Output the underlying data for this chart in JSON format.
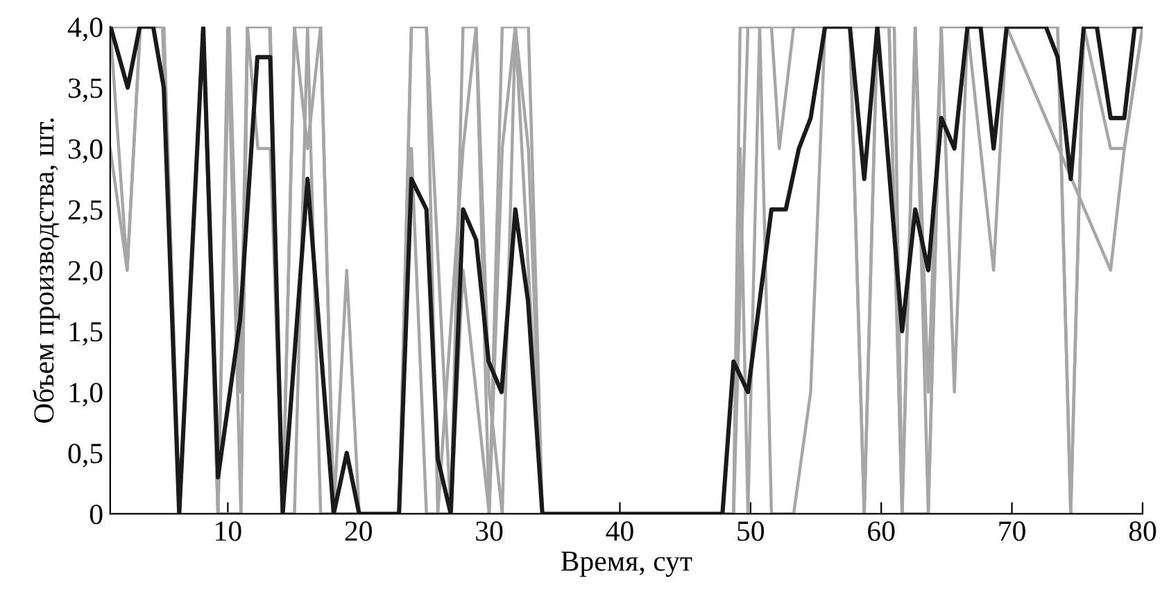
{
  "chart_data": {
    "type": "line",
    "xlabel": "Время, сут",
    "ylabel": "Объем производства, шт.",
    "xlim": [
      1,
      80
    ],
    "xticks": [
      10,
      20,
      30,
      40,
      50,
      60,
      70,
      80
    ],
    "ylim": [
      0,
      4
    ],
    "yticks": [
      {
        "value": 0,
        "label": "0"
      },
      {
        "value": 0.5,
        "label": "0,5"
      },
      {
        "value": 1,
        "label": "1,0"
      },
      {
        "value": 1.5,
        "label": "1,5"
      },
      {
        "value": 2,
        "label": "2,0"
      },
      {
        "value": 2.5,
        "label": "2,5"
      },
      {
        "value": 3,
        "label": "3,0"
      },
      {
        "value": 3.5,
        "label": "3,5"
      },
      {
        "value": 4,
        "label": "4,0"
      }
    ],
    "grid": false,
    "legend": false,
    "marker": "none",
    "line_style": "solid",
    "series": [
      {
        "color": "#a6a6a6",
        "x": [
          1,
          5,
          6.3,
          8.1,
          9.25,
          10,
          11,
          11.5,
          13.2,
          14.2,
          15.1,
          16.1,
          17.1,
          18.1,
          23.1,
          24.05,
          25.2,
          27.06,
          28,
          29,
          30,
          31,
          32,
          33,
          34.07,
          48.7,
          49.2,
          50.7,
          57.6,
          58.7,
          59.7,
          60.6,
          61.6,
          62.6,
          63.6,
          64.6,
          73.5,
          74.5,
          75.5,
          80
        ],
        "values": [
          4,
          4,
          0,
          4,
          0,
          4,
          0,
          4,
          4,
          0,
          4,
          3,
          4,
          0,
          0,
          4,
          4,
          0,
          4,
          4,
          0,
          4,
          4,
          4,
          0,
          0,
          4,
          4,
          4,
          0,
          4,
          4,
          0,
          4,
          0,
          4,
          4,
          0,
          4,
          4
        ]
      },
      {
        "color": "#a6a6a6",
        "x": [
          1,
          2.3,
          3.3,
          5.1,
          6.3,
          8.1,
          9.25,
          10.1,
          10.95,
          11.5,
          12.3,
          13.25,
          14.2,
          15.1,
          16.1,
          17.1,
          18.1,
          19.1,
          20.05,
          23.1,
          24.05,
          25.2,
          26.07,
          28,
          29,
          30,
          31,
          32,
          33,
          34.07,
          48.7,
          49.2,
          49.8,
          50.7,
          51.6,
          52.2,
          53.3,
          57.6,
          58.7,
          59.7,
          61,
          61.6,
          62.6,
          63.6,
          64.6,
          65.6,
          66.6,
          68.6,
          69.6,
          77.55,
          78.6,
          80
        ],
        "values": [
          4,
          2,
          4,
          4,
          0,
          4,
          0,
          4,
          1,
          4,
          3,
          3,
          0,
          0,
          4,
          0,
          0,
          2,
          0,
          0,
          3,
          0,
          0,
          3,
          4,
          1,
          0,
          4,
          2,
          0,
          0,
          3,
          0,
          4,
          4,
          3,
          4,
          4,
          0,
          4,
          4,
          0,
          4,
          1,
          4,
          1,
          4,
          2,
          4,
          2,
          3,
          4
        ]
      },
      {
        "color": "#a6a6a6",
        "x": [
          1,
          2.3,
          3.3,
          5.1,
          6.3,
          8.1,
          9.25,
          11,
          11.5,
          13.25,
          14.2,
          15.1,
          17.1,
          18.1,
          23.1,
          24.05,
          25.2,
          26.07,
          27.06,
          28,
          29,
          30,
          31,
          32,
          33,
          34.07,
          48.7,
          49.8,
          50.7,
          51.6,
          53.3,
          54.6,
          55.7,
          60.6,
          61.6,
          63.6,
          64.6,
          73.5,
          74.5,
          75.5,
          77.55,
          78.6,
          80
        ],
        "values": [
          3,
          2,
          4,
          4,
          0,
          4,
          0,
          0,
          4,
          4,
          0,
          4,
          4,
          0,
          0,
          4,
          4,
          0,
          0,
          2,
          1,
          0,
          3,
          4,
          3,
          0,
          0,
          4,
          4,
          0,
          0,
          1,
          4,
          4,
          0,
          0,
          4,
          4,
          0,
          4,
          3,
          3,
          4
        ]
      },
      {
        "color": "#1a1a1a",
        "x": [
          1.03,
          2.34,
          3.26,
          4.29,
          5.1,
          6.28,
          8.12,
          9.25,
          10.95,
          12.26,
          13.25,
          14.2,
          16.1,
          18.1,
          19.1,
          20.05,
          23.1,
          24.05,
          25.2,
          26.07,
          27.06,
          28,
          29,
          29.96,
          30.95,
          32,
          32.97,
          34.07,
          47.85,
          48.7,
          49.8,
          51.6,
          52.7,
          53.7,
          54.6,
          55.7,
          57.6,
          58.7,
          59.7,
          61.6,
          62.6,
          63.6,
          64.6,
          65.6,
          66.6,
          67.6,
          68.6,
          69.6,
          72.6,
          73.5,
          74.5,
          75.5,
          76.5,
          77.55,
          78.6,
          79.4,
          80
        ],
        "values": [
          4,
          3.5,
          4,
          4,
          3.5,
          0,
          4,
          0.3,
          1.6,
          3.75,
          3.75,
          0,
          2.75,
          0,
          0.5,
          0,
          0,
          2.75,
          2.5,
          0.45,
          0,
          2.5,
          2.25,
          1.25,
          1,
          2.5,
          1.75,
          0,
          0,
          1.25,
          1,
          2.5,
          2.5,
          3,
          3.25,
          4,
          4,
          2.75,
          4,
          1.5,
          2.5,
          2,
          3.25,
          3,
          4,
          4,
          3,
          4,
          4,
          3.75,
          2.75,
          4,
          4,
          3.25,
          3.25,
          4,
          4
        ]
      }
    ]
  }
}
